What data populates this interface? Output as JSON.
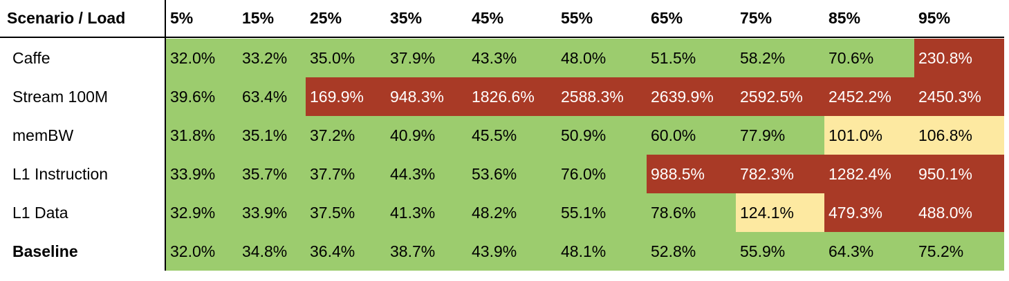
{
  "chart_data": {
    "type": "heatmap",
    "corner_label": "Scenario / Load",
    "columns": [
      "5%",
      "15%",
      "25%",
      "35%",
      "45%",
      "55%",
      "65%",
      "75%",
      "85%",
      "95%"
    ],
    "rows": [
      {
        "label": "Caffe",
        "bold": false,
        "values": [
          "32.0%",
          "33.2%",
          "35.0%",
          "37.9%",
          "43.3%",
          "48.0%",
          "51.5%",
          "58.2%",
          "70.6%",
          "230.8%"
        ],
        "levels": [
          "green",
          "green",
          "green",
          "green",
          "green",
          "green",
          "green",
          "green",
          "green",
          "red"
        ]
      },
      {
        "label": "Stream 100M",
        "bold": false,
        "values": [
          "39.6%",
          "63.4%",
          "169.9%",
          "948.3%",
          "1826.6%",
          "2588.3%",
          "2639.9%",
          "2592.5%",
          "2452.2%",
          "2450.3%"
        ],
        "levels": [
          "green",
          "green",
          "red",
          "red",
          "red",
          "red",
          "red",
          "red",
          "red",
          "red"
        ]
      },
      {
        "label": "memBW",
        "bold": false,
        "values": [
          "31.8%",
          "35.1%",
          "37.2%",
          "40.9%",
          "45.5%",
          "50.9%",
          "60.0%",
          "77.9%",
          "101.0%",
          "106.8%"
        ],
        "levels": [
          "green",
          "green",
          "green",
          "green",
          "green",
          "green",
          "green",
          "green",
          "yellow",
          "yellow"
        ]
      },
      {
        "label": "L1 Instruction",
        "bold": false,
        "values": [
          "33.9%",
          "35.7%",
          "37.7%",
          "44.3%",
          "53.6%",
          "76.0%",
          "988.5%",
          "782.3%",
          "1282.4%",
          "950.1%"
        ],
        "levels": [
          "green",
          "green",
          "green",
          "green",
          "green",
          "green",
          "red",
          "red",
          "red",
          "red"
        ]
      },
      {
        "label": "L1 Data",
        "bold": false,
        "values": [
          "32.9%",
          "33.9%",
          "37.5%",
          "41.3%",
          "48.2%",
          "55.1%",
          "78.6%",
          "124.1%",
          "479.3%",
          "488.0%"
        ],
        "levels": [
          "green",
          "green",
          "green",
          "green",
          "green",
          "green",
          "green",
          "yellow",
          "red",
          "red"
        ]
      },
      {
        "label": "Baseline",
        "bold": true,
        "values": [
          "32.0%",
          "34.8%",
          "36.4%",
          "38.7%",
          "43.9%",
          "48.1%",
          "52.8%",
          "55.9%",
          "64.3%",
          "75.2%"
        ],
        "levels": [
          "green",
          "green",
          "green",
          "green",
          "green",
          "green",
          "green",
          "green",
          "green",
          "green"
        ]
      }
    ],
    "colors": {
      "green": {
        "bg": "#9ccc6e",
        "text": "#000000"
      },
      "yellow": {
        "bg": "#fde9a1",
        "text": "#000000"
      },
      "red": {
        "bg": "#a93a26",
        "text": "#ffffff"
      }
    }
  }
}
